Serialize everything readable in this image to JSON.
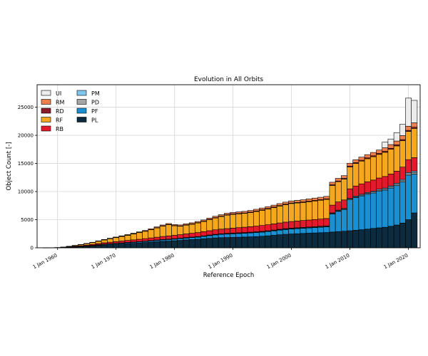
{
  "chart_data": {
    "type": "bar",
    "stacked": true,
    "title": "Evolution in All Orbits",
    "xlabel": "Reference Epoch",
    "ylabel": "Object Count [-]",
    "ylim": [
      0,
      29000
    ],
    "xlim": [
      1956.5,
      2022.0
    ],
    "grid": true,
    "legend_position": "top-left",
    "x_ticks": [
      {
        "value": 1960,
        "label": "1 Jan 1960"
      },
      {
        "value": 1970,
        "label": "1 Jan 1970"
      },
      {
        "value": 1980,
        "label": "1 Jan 1980"
      },
      {
        "value": 1990,
        "label": "1 Jan 1990"
      },
      {
        "value": 2000,
        "label": "1 Jan 2000"
      },
      {
        "value": 2010,
        "label": "1 Jan 2010"
      },
      {
        "value": 2020,
        "label": "1 Jan 2020"
      }
    ],
    "y_ticks": [
      0,
      5000,
      10000,
      15000,
      20000,
      25000
    ],
    "x": [
      1958,
      1959,
      1960,
      1961,
      1962,
      1963,
      1964,
      1965,
      1966,
      1967,
      1968,
      1969,
      1970,
      1971,
      1972,
      1973,
      1974,
      1975,
      1976,
      1977,
      1978,
      1979,
      1980,
      1981,
      1982,
      1983,
      1984,
      1985,
      1986,
      1987,
      1988,
      1989,
      1990,
      1991,
      1992,
      1993,
      1994,
      1995,
      1996,
      1997,
      1998,
      1999,
      2000,
      2001,
      2002,
      2003,
      2004,
      2005,
      2006,
      2007,
      2008,
      2009,
      2010,
      2011,
      2012,
      2013,
      2014,
      2015,
      2016,
      2017,
      2018,
      2019,
      2020,
      2021
    ],
    "series": [
      {
        "name": "PL",
        "color": "#0d2b3e",
        "values": [
          5,
          10,
          20,
          40,
          80,
          130,
          180,
          250,
          330,
          420,
          500,
          560,
          620,
          680,
          740,
          800,
          860,
          930,
          1000,
          1080,
          1150,
          1200,
          1260,
          1320,
          1400,
          1460,
          1520,
          1600,
          1680,
          1760,
          1800,
          1820,
          1850,
          1880,
          1910,
          1950,
          1990,
          2050,
          2130,
          2220,
          2320,
          2400,
          2460,
          2510,
          2560,
          2600,
          2640,
          2680,
          2720,
          2800,
          2880,
          2950,
          3030,
          3130,
          3220,
          3320,
          3450,
          3550,
          3650,
          3820,
          4050,
          4400,
          5000,
          6200
        ]
      },
      {
        "name": "PF",
        "color": "#1a8fd1",
        "values": [
          0,
          0,
          0,
          5,
          15,
          30,
          50,
          70,
          90,
          110,
          130,
          140,
          150,
          160,
          170,
          180,
          190,
          200,
          220,
          240,
          260,
          270,
          280,
          310,
          330,
          360,
          380,
          430,
          480,
          530,
          580,
          620,
          640,
          660,
          680,
          700,
          720,
          740,
          760,
          790,
          820,
          850,
          870,
          890,
          910,
          930,
          950,
          970,
          1000,
          3200,
          3600,
          3800,
          5500,
          5800,
          6000,
          6200,
          6300,
          6500,
          6600,
          6800,
          7000,
          7300,
          7900,
          6900
        ]
      },
      {
        "name": "PD",
        "color": "#a6a6a6",
        "values": [
          0,
          0,
          0,
          0,
          0,
          5,
          5,
          10,
          10,
          15,
          15,
          20,
          20,
          20,
          25,
          25,
          25,
          30,
          30,
          30,
          35,
          35,
          40,
          40,
          40,
          40,
          45,
          45,
          50,
          50,
          50,
          50,
          55,
          55,
          55,
          60,
          60,
          60,
          60,
          65,
          65,
          70,
          70,
          70,
          70,
          75,
          75,
          75,
          80,
          100,
          110,
          120,
          130,
          140,
          150,
          160,
          170,
          180,
          190,
          200,
          210,
          230,
          250,
          280
        ]
      },
      {
        "name": "PM",
        "color": "#7ec8ef",
        "values": [
          0,
          0,
          0,
          0,
          0,
          0,
          5,
          5,
          10,
          10,
          15,
          15,
          20,
          20,
          25,
          25,
          30,
          30,
          35,
          35,
          40,
          40,
          45,
          45,
          50,
          50,
          55,
          55,
          60,
          60,
          60,
          65,
          65,
          70,
          70,
          70,
          75,
          75,
          80,
          80,
          85,
          85,
          90,
          90,
          95,
          95,
          100,
          100,
          105,
          110,
          115,
          120,
          130,
          140,
          150,
          160,
          170,
          180,
          190,
          200,
          210,
          220,
          230,
          250
        ]
      },
      {
        "name": "RB",
        "color": "#e41a2c",
        "values": [
          0,
          5,
          15,
          30,
          60,
          90,
          110,
          140,
          170,
          200,
          230,
          260,
          290,
          320,
          350,
          380,
          410,
          440,
          470,
          500,
          530,
          560,
          590,
          620,
          650,
          680,
          710,
          740,
          770,
          800,
          830,
          860,
          890,
          920,
          950,
          980,
          1010,
          1040,
          1070,
          1100,
          1130,
          1160,
          1180,
          1200,
          1220,
          1240,
          1260,
          1280,
          1300,
          1380,
          1450,
          1520,
          1700,
          1780,
          1850,
          1900,
          1960,
          2000,
          2050,
          2100,
          2150,
          2200,
          2300,
          2400
        ]
      },
      {
        "name": "RF",
        "color": "#f5a81e",
        "values": [
          0,
          5,
          20,
          50,
          100,
          150,
          200,
          260,
          330,
          420,
          520,
          620,
          720,
          820,
          920,
          1050,
          1180,
          1300,
          1450,
          1650,
          1850,
          2000,
          1700,
          1500,
          1550,
          1600,
          1700,
          1800,
          1950,
          2100,
          2250,
          2400,
          2450,
          2450,
          2450,
          2500,
          2600,
          2700,
          2800,
          2900,
          3000,
          3100,
          3200,
          3200,
          3200,
          3250,
          3300,
          3350,
          3400,
          3500,
          3600,
          3700,
          3900,
          4000,
          4050,
          4100,
          4150,
          4200,
          4300,
          4400,
          4500,
          4700,
          5000,
          5200
        ]
      },
      {
        "name": "RD",
        "color": "#8b1a2a",
        "values": [
          0,
          0,
          0,
          0,
          0,
          5,
          5,
          10,
          10,
          15,
          15,
          20,
          20,
          25,
          25,
          30,
          30,
          35,
          35,
          40,
          40,
          45,
          45,
          50,
          50,
          55,
          55,
          60,
          60,
          65,
          65,
          70,
          70,
          75,
          75,
          80,
          80,
          85,
          85,
          90,
          90,
          95,
          95,
          100,
          100,
          105,
          105,
          110,
          110,
          120,
          125,
          130,
          140,
          150,
          155,
          160,
          165,
          170,
          175,
          180,
          185,
          190,
          200,
          210
        ]
      },
      {
        "name": "RM",
        "color": "#f07f4e",
        "values": [
          0,
          0,
          0,
          5,
          10,
          15,
          20,
          25,
          30,
          40,
          50,
          60,
          70,
          80,
          90,
          100,
          110,
          120,
          130,
          140,
          150,
          160,
          170,
          180,
          190,
          200,
          210,
          220,
          230,
          240,
          250,
          260,
          270,
          280,
          290,
          300,
          310,
          320,
          330,
          340,
          350,
          360,
          370,
          380,
          390,
          400,
          410,
          420,
          430,
          450,
          470,
          490,
          510,
          530,
          550,
          570,
          590,
          610,
          630,
          650,
          680,
          710,
          740,
          780
        ]
      },
      {
        "name": "UI",
        "color": "#ececec",
        "values": [
          0,
          0,
          0,
          0,
          0,
          0,
          0,
          0,
          0,
          0,
          0,
          0,
          0,
          0,
          0,
          0,
          0,
          0,
          0,
          0,
          0,
          0,
          0,
          0,
          0,
          0,
          0,
          0,
          0,
          0,
          0,
          0,
          0,
          0,
          0,
          0,
          0,
          0,
          0,
          0,
          0,
          0,
          0,
          0,
          0,
          0,
          0,
          0,
          0,
          0,
          0,
          0,
          0,
          0,
          0,
          0,
          0,
          0,
          1000,
          1000,
          1500,
          2000,
          5000,
          4000
        ]
      }
    ],
    "legend_order": [
      "UI",
      "RM",
      "RD",
      "RF",
      "RB",
      "PM",
      "PD",
      "PF",
      "PL"
    ]
  }
}
